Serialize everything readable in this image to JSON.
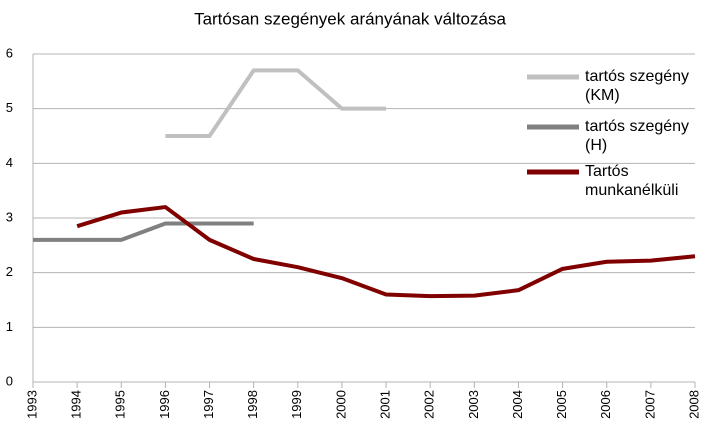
{
  "chart_data": {
    "type": "line",
    "title": "Tartósan szegények arányának változása",
    "x": [
      1993,
      1994,
      1995,
      1996,
      1997,
      1998,
      1999,
      2000,
      2001,
      2002,
      2003,
      2004,
      2005,
      2006,
      2007,
      2008
    ],
    "series": [
      {
        "name": "tartós szegény (KM)",
        "color": "#c0c0c0",
        "values": [
          null,
          null,
          null,
          4.5,
          4.5,
          5.7,
          5.7,
          5.0,
          5.0,
          null,
          null,
          null,
          null,
          null,
          null,
          null
        ]
      },
      {
        "name": "tartós szegény (H)",
        "color": "#808080",
        "values": [
          2.6,
          2.6,
          2.6,
          2.9,
          2.9,
          2.9,
          null,
          null,
          null,
          null,
          null,
          null,
          null,
          null,
          null,
          null
        ]
      },
      {
        "name": "Tartós munkanélküli",
        "color": "#800000",
        "values": [
          null,
          2.85,
          3.1,
          3.2,
          2.6,
          2.25,
          2.1,
          1.9,
          1.6,
          1.57,
          1.58,
          1.68,
          2.07,
          2.2,
          2.22,
          2.3
        ]
      }
    ],
    "xlim": [
      1993,
      2008
    ],
    "xticks": [
      1993,
      1994,
      1995,
      1996,
      1997,
      1998,
      1999,
      2000,
      2001,
      2002,
      2003,
      2004,
      2005,
      2006,
      2007,
      2008
    ],
    "ylim": [
      0,
      6
    ],
    "yticks": [
      0,
      1,
      2,
      3,
      4,
      5,
      6
    ],
    "grid": true,
    "legend": "right"
  }
}
